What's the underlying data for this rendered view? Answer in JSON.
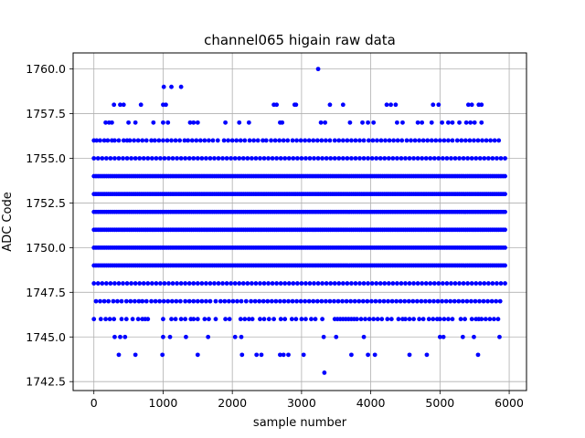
{
  "chart_data": {
    "type": "scatter",
    "title": "channel065 higain raw data",
    "xlabel": "sample number",
    "ylabel": "ADC Code",
    "xlim": [
      -300,
      6250
    ],
    "ylim": [
      1742.0,
      1760.9
    ],
    "xticks": [
      0,
      1000,
      2000,
      3000,
      4000,
      5000,
      6000
    ],
    "yticks": [
      1742.5,
      1745.0,
      1747.5,
      1750.0,
      1752.5,
      1755.0,
      1757.5,
      1760.0
    ],
    "xtick_labels": [
      "0",
      "1000",
      "2000",
      "3000",
      "4000",
      "5000",
      "6000"
    ],
    "ytick_labels": [
      "1742.5",
      "1745.0",
      "1747.5",
      "1750.0",
      "1752.5",
      "1755.0",
      "1757.5",
      "1760.0"
    ],
    "grid": true,
    "marker_color": "#0000ff",
    "x_range": [
      0,
      5950
    ],
    "dense_levels": [
      1749,
      1750,
      1751,
      1752,
      1753,
      1754
    ],
    "sparse_levels": [
      {
        "y": 1755,
        "x": [
          0,
          60,
          120,
          180,
          240,
          300,
          360,
          420,
          480,
          540,
          600,
          660,
          720,
          780,
          840,
          900,
          960,
          1020,
          1080,
          1140,
          1200,
          1260,
          1320,
          1380,
          1440,
          1500,
          1560,
          1620,
          1680,
          1740,
          1800,
          1860,
          1920,
          1980,
          2040,
          2100,
          2160,
          2220,
          2280,
          2340,
          2400,
          2460,
          2520,
          2580,
          2640,
          2700,
          2760,
          2820,
          2880,
          2940,
          3000,
          3060,
          3120,
          3180,
          3240,
          3300,
          3360,
          3420,
          3480,
          3540,
          3600,
          3660,
          3720,
          3780,
          3840,
          3900,
          3960,
          4020,
          4080,
          4140,
          4200,
          4260,
          4320,
          4380,
          4440,
          4500,
          4560,
          4620,
          4680,
          4740,
          4800,
          4860,
          4920,
          4980,
          5040,
          5100,
          5160,
          5220,
          5280,
          5340,
          5400,
          5460,
          5520,
          5580,
          5640,
          5700,
          5760,
          5820,
          5880,
          5940
        ]
      },
      {
        "y": 1748,
        "x": [
          0,
          60,
          120,
          180,
          240,
          300,
          360,
          420,
          480,
          540,
          600,
          660,
          720,
          780,
          840,
          900,
          960,
          1020,
          1080,
          1140,
          1200,
          1260,
          1320,
          1380,
          1440,
          1500,
          1560,
          1620,
          1680,
          1740,
          1800,
          1860,
          1920,
          1980,
          2040,
          2100,
          2160,
          2220,
          2280,
          2340,
          2400,
          2460,
          2520,
          2580,
          2640,
          2700,
          2760,
          2820,
          2880,
          2940,
          3000,
          3060,
          3120,
          3180,
          3240,
          3300,
          3360,
          3420,
          3480,
          3540,
          3600,
          3660,
          3720,
          3780,
          3840,
          3900,
          3960,
          4020,
          4080,
          4140,
          4200,
          4260,
          4320,
          4380,
          4440,
          4500,
          4560,
          4620,
          4680,
          4740,
          4800,
          4860,
          4920,
          4980,
          5040,
          5100,
          5160,
          5220,
          5280,
          5340,
          5400,
          5460,
          5520,
          5580,
          5640,
          5700,
          5760,
          5820,
          5880,
          5940
        ]
      },
      {
        "y": 1756,
        "x": [
          0,
          40,
          90,
          150,
          200,
          260,
          300,
          360,
          430,
          480,
          520,
          580,
          640,
          700,
          760,
          830,
          880,
          940,
          1000,
          1060,
          1120,
          1180,
          1240,
          1310,
          1360,
          1420,
          1480,
          1540,
          1600,
          1660,
          1720,
          1790,
          1880,
          1940,
          2000,
          2060,
          2120,
          2180,
          2250,
          2310,
          2370,
          2440,
          2490,
          2560,
          2620,
          2680,
          2740,
          2800,
          2870,
          2930,
          2990,
          3050,
          3110,
          3170,
          3230,
          3290,
          3350,
          3410,
          3480,
          3540,
          3600,
          3660,
          3720,
          3780,
          3840,
          3900,
          3970,
          4030,
          4090,
          4150,
          4210,
          4270,
          4330,
          4390,
          4450,
          4520,
          4580,
          4640,
          4700,
          4760,
          4820,
          4880,
          4940,
          5000,
          5060,
          5120,
          5180,
          5250,
          5310,
          5370,
          5430,
          5490,
          5550,
          5610,
          5670,
          5730,
          5790,
          5850
        ]
      },
      {
        "y": 1747,
        "x": [
          30,
          90,
          150,
          210,
          280,
          340,
          400,
          470,
          530,
          590,
          650,
          700,
          760,
          830,
          890,
          950,
          1010,
          1070,
          1130,
          1190,
          1250,
          1320,
          1380,
          1440,
          1500,
          1560,
          1620,
          1680,
          1760,
          1830,
          1890,
          1950,
          2010,
          2070,
          2130,
          2200,
          2270,
          2330,
          2390,
          2450,
          2510,
          2570,
          2630,
          2690,
          2750,
          2810,
          2870,
          2930,
          2990,
          3050,
          3110,
          3170,
          3230,
          3290,
          3350,
          3410,
          3470,
          3530,
          3590,
          3650,
          3710,
          3770,
          3830,
          3890,
          3950,
          4010,
          4070,
          4130,
          4190,
          4250,
          4310,
          4370,
          4430,
          4490,
          4550,
          4610,
          4670,
          4730,
          4790,
          4850,
          4910,
          4970,
          5030,
          5090,
          5150,
          5210,
          5270,
          5330,
          5390,
          5450,
          5510,
          5570,
          5630,
          5690,
          5750,
          5810,
          5870
        ]
      },
      {
        "y": 1746,
        "x": [
          0,
          100,
          170,
          230,
          290,
          400,
          470,
          560,
          640,
          700,
          740,
          780,
          1000,
          1120,
          1180,
          1260,
          1320,
          1400,
          1440,
          1500,
          1600,
          1660,
          1760,
          1900,
          1960,
          2120,
          2180,
          2240,
          2290,
          2400,
          2460,
          2530,
          2600,
          2700,
          2760,
          2860,
          2920,
          3000,
          3060,
          3140,
          3200,
          3300,
          3480,
          3520,
          3560,
          3600,
          3640,
          3680,
          3720,
          3760,
          3800,
          3860,
          3920,
          3980,
          4040,
          4100,
          4160,
          4240,
          4300,
          4400,
          4460,
          4500,
          4560,
          4620,
          4700,
          4760,
          4840,
          4900,
          4960,
          5000,
          5060,
          5120,
          5180,
          5300,
          5360,
          5460,
          5520,
          5560,
          5600,
          5660,
          5720,
          5780,
          5840
        ]
      },
      {
        "y": 1745,
        "x": [
          300,
          380,
          450,
          1000,
          1100,
          1330,
          1650,
          2040,
          2130,
          3320,
          3500,
          3900,
          5000,
          5050,
          5330,
          5490,
          5860
        ]
      },
      {
        "y": 1744,
        "x": [
          360,
          600,
          990,
          1500,
          2140,
          2350,
          2420,
          2690,
          2740,
          2810,
          3030,
          3720,
          3960,
          4060,
          4560,
          4810,
          5550
        ]
      },
      {
        "y": 1757,
        "x": [
          170,
          220,
          260,
          500,
          600,
          860,
          1000,
          1070,
          1390,
          1440,
          1500,
          1900,
          2100,
          2240,
          2690,
          2720,
          3280,
          3340,
          3700,
          3880,
          3960,
          4040,
          4380,
          4460,
          4680,
          4740,
          4880,
          5030,
          5120,
          5180,
          5280,
          5380,
          5440,
          5500,
          5600
        ]
      },
      {
        "y": 1758,
        "x": [
          290,
          380,
          430,
          680,
          1000,
          1040,
          2600,
          2640,
          2900,
          2920,
          3410,
          3600,
          4230,
          4290,
          4360,
          4900,
          4980,
          5410,
          5460,
          5560,
          5600
        ]
      },
      {
        "y": 1759,
        "x": [
          1010,
          1120,
          1260
        ]
      },
      {
        "y": 1760,
        "x": [
          3240
        ]
      },
      {
        "y": 1743,
        "x": [
          3330
        ]
      }
    ]
  }
}
